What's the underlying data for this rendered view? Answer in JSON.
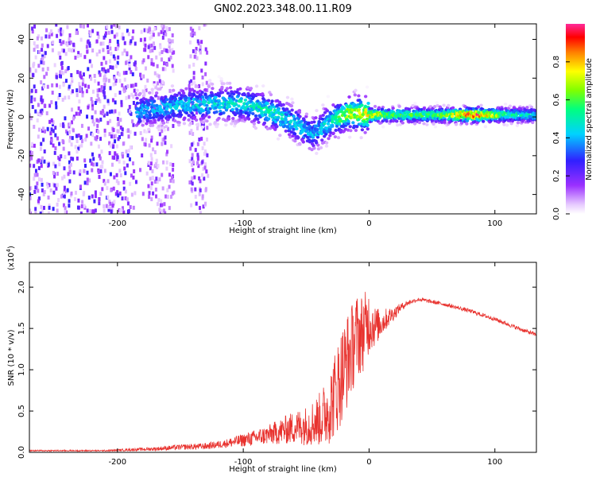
{
  "title": "GN02.2023.348.00.11.R09",
  "chart_data": [
    {
      "type": "heatmap",
      "xlabel": "Height of straight line (km)",
      "ylabel": "Frequency (Hz)",
      "xlim": [
        -270,
        133
      ],
      "ylim": [
        -50,
        48
      ],
      "x_ticks": [
        -200,
        -100,
        0,
        100
      ],
      "x_tick_labels": [
        "-200",
        "-100",
        "0",
        "100"
      ],
      "y_ticks": [
        -40,
        -20,
        0,
        20,
        40
      ],
      "y_tick_labels": [
        "-40",
        "-20",
        "0",
        "20",
        "40"
      ],
      "grid": false,
      "colorbar": {
        "label": "Normalized spectral amplitude",
        "range": [
          0,
          1
        ],
        "colormap": "rainbow",
        "ticks": [
          0,
          0.2,
          0.4,
          0.6,
          0.8
        ],
        "tick_labels": [
          "0.0",
          "0.2",
          "0.4",
          "0.6",
          "0.8"
        ]
      },
      "ridge": [
        {
          "x": -185,
          "y": 3,
          "amp": 0.42
        },
        {
          "x": -150,
          "y": 6,
          "amp": 0.45
        },
        {
          "x": -120,
          "y": 7,
          "amp": 0.48
        },
        {
          "x": -100,
          "y": 7,
          "amp": 0.5
        },
        {
          "x": -80,
          "y": 3,
          "amp": 0.52
        },
        {
          "x": -60,
          "y": -3,
          "amp": 0.48
        },
        {
          "x": -45,
          "y": -9,
          "amp": 0.42
        },
        {
          "x": -30,
          "y": -2,
          "amp": 0.5
        },
        {
          "x": -15,
          "y": 2,
          "amp": 0.7
        },
        {
          "x": 0,
          "y": 1,
          "amp": 0.78
        },
        {
          "x": 20,
          "y": 1,
          "amp": 0.6
        },
        {
          "x": 50,
          "y": 1,
          "amp": 0.6
        },
        {
          "x": 85,
          "y": 1,
          "amp": 0.95
        },
        {
          "x": 110,
          "y": 1,
          "amp": 0.55
        },
        {
          "x": 133,
          "y": 1,
          "amp": 0.5
        }
      ],
      "noise_bands": [
        {
          "x_from": -270,
          "x_to": -185,
          "level": 0.35
        },
        {
          "x_from": -182,
          "x_to": -155,
          "level": 0.22
        },
        {
          "x_from": -143,
          "x_to": -128,
          "level": 0.25
        }
      ]
    },
    {
      "type": "line",
      "xlabel": "Height of straight line (km)",
      "ylabel": "SNR (10 * v/v)",
      "y_multiplier": "(x10",
      "y_multiplier_exp": "4",
      "y_multiplier_close": ")",
      "xlim": [
        -270,
        133
      ],
      "ylim": [
        0,
        2.3
      ],
      "x_ticks": [
        -200,
        -100,
        0,
        100
      ],
      "x_tick_labels": [
        "-200",
        "-100",
        "0",
        "100"
      ],
      "y_ticks": [
        0,
        0.5,
        1.0,
        1.5,
        2.0
      ],
      "y_tick_labels": [
        "0.0",
        "0.5",
        "1.0",
        "1.5",
        "2.0"
      ],
      "grid": false,
      "series": [
        {
          "color": "#e8322e",
          "x": [
            -270,
            -250,
            -230,
            -210,
            -190,
            -170,
            -150,
            -130,
            -115,
            -100,
            -90,
            -80,
            -70,
            -60,
            -50,
            -40,
            -35,
            -30,
            -25,
            -20,
            -15,
            -10,
            -5,
            0,
            5,
            10,
            15,
            20,
            25,
            30,
            35,
            40,
            50,
            60,
            70,
            80,
            90,
            100,
            110,
            120,
            133
          ],
          "values": [
            0.02,
            0.02,
            0.02,
            0.02,
            0.03,
            0.04,
            0.06,
            0.07,
            0.1,
            0.14,
            0.17,
            0.2,
            0.24,
            0.28,
            0.3,
            0.36,
            0.42,
            0.55,
            0.75,
            0.95,
            1.15,
            1.35,
            1.4,
            1.55,
            1.5,
            1.55,
            1.62,
            1.68,
            1.75,
            1.8,
            1.83,
            1.85,
            1.82,
            1.79,
            1.75,
            1.71,
            1.66,
            1.61,
            1.55,
            1.49,
            1.42
          ],
          "noise": [
            0.01,
            0.01,
            0.01,
            0.01,
            0.02,
            0.03,
            0.04,
            0.05,
            0.06,
            0.1,
            0.12,
            0.15,
            0.2,
            0.25,
            0.3,
            0.4,
            0.5,
            0.6,
            0.7,
            0.75,
            0.7,
            0.65,
            0.6,
            0.5,
            0.3,
            0.2,
            0.15,
            0.1,
            0.06,
            0.04,
            0.03,
            0.03,
            0.03,
            0.03,
            0.03,
            0.03,
            0.03,
            0.03,
            0.03,
            0.03,
            0.03
          ]
        }
      ]
    }
  ]
}
